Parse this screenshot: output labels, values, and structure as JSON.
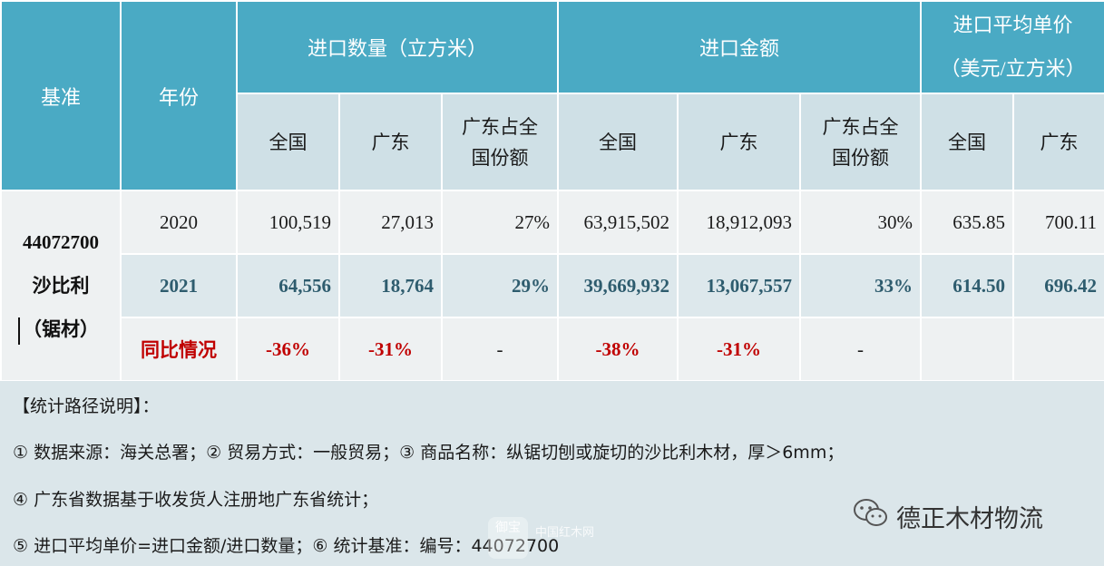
{
  "table": {
    "headers": {
      "basis": "基准",
      "year": "年份",
      "import_qty": "进口数量（立方米）",
      "import_amount": "进口金额",
      "avg_price_line1": "进口平均单价",
      "avg_price_line2": "（美元/立方米）",
      "national": "全国",
      "guangdong": "广东",
      "share_line1": "广东占全",
      "share_line2": "国份额"
    },
    "basis": {
      "code": "44072700",
      "name": "沙比利",
      "type": "（锯材）"
    },
    "rows": [
      {
        "year": "2020",
        "qty_national": "100,519",
        "qty_gd": "27,013",
        "qty_share": "27%",
        "amt_national": "63,915,502",
        "amt_gd": "18,912,093",
        "amt_share": "30%",
        "price_national": "635.85",
        "price_gd": "700.11"
      },
      {
        "year": "2021",
        "qty_national": "64,556",
        "qty_gd": "18,764",
        "qty_share": "29%",
        "amt_national": "39,669,932",
        "amt_gd": "13,067,557",
        "amt_share": "33%",
        "price_national": "614.50",
        "price_gd": "696.42"
      },
      {
        "year": "同比情况",
        "qty_national": "-36%",
        "qty_gd": "-31%",
        "qty_share": "-",
        "amt_national": "-38%",
        "amt_gd": "-31%",
        "amt_share": "-",
        "price_national": "",
        "price_gd": ""
      }
    ]
  },
  "notes": {
    "title": "【统计路径说明】：",
    "line1": "① 数据来源：海关总署；② 贸易方式：一般贸易；③ 商品名称：纵锯切刨或旋切的沙比利木材，厚＞6mm；",
    "line2": "④ 广东省数据基于收发货人注册地广东省统计；",
    "line3": "⑤ 进口平均单价=进口金额/进口数量；⑥ 统计基准：编号：44072700"
  },
  "brand": {
    "name": "德正木材物流",
    "icon": "wechat-icon"
  },
  "watermark": {
    "text": "中国红木网",
    "seal": "御宝"
  },
  "colors": {
    "header_bg": "#4aaac4",
    "subheader_bg": "#cfe0e6",
    "row_2021_text": "#2e5c6e",
    "yoy_text": "#c00000",
    "notes_bg": "#dbe6ea"
  }
}
